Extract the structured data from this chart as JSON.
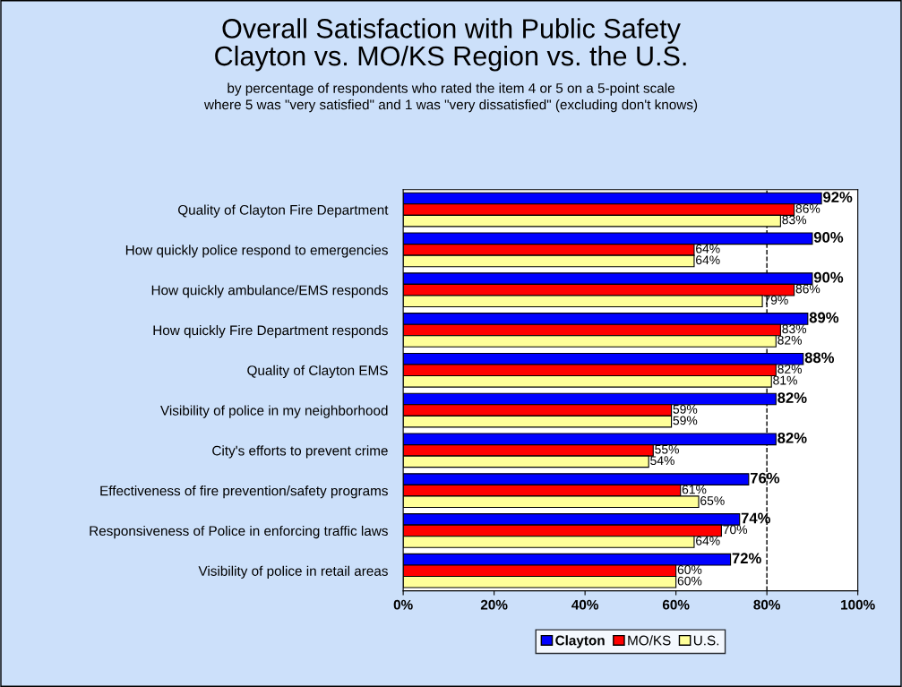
{
  "chart_data": {
    "type": "bar",
    "orientation": "horizontal",
    "title": "Overall Satisfaction with Public Safety",
    "subtitle": "Clayton vs. MO/KS Region vs. the U.S.",
    "annotations": [
      "by percentage of respondents who rated the item 4 or 5 on a 5-point scale",
      "where 5 was \"very satisfied\" and 1 was \"very dissatisfied\" (excluding don't knows)"
    ],
    "categories": [
      "Quality of Clayton Fire Department",
      "How quickly police respond to emergencies",
      "How quickly ambulance/EMS responds",
      "How quickly Fire Department responds",
      "Quality of Clayton EMS",
      "Visibility of police in my neighborhood",
      "City's efforts to prevent crime",
      "Effectiveness of fire prevention/safety programs",
      "Responsiveness of Police in enforcing traffic laws",
      "Visibility of police in retail areas"
    ],
    "series": [
      {
        "name": "Clayton",
        "color": "#0000ff",
        "values": [
          92,
          90,
          90,
          89,
          88,
          82,
          82,
          76,
          74,
          72
        ],
        "value_labels": [
          "92%",
          "90%",
          "90%",
          "89%",
          "88%",
          "82%",
          "82%",
          "76%",
          "74%",
          "72%"
        ]
      },
      {
        "name": "MO/KS",
        "color": "#ff0000",
        "values": [
          86,
          64,
          86,
          83,
          82,
          59,
          55,
          61,
          70,
          60
        ],
        "value_labels": [
          "86%",
          "64%",
          "86%",
          "83%",
          "82%",
          "59%",
          "55%",
          "61%",
          "70%",
          "60%"
        ]
      },
      {
        "name": "U.S.",
        "color": "#ffff99",
        "values": [
          83,
          64,
          79,
          82,
          81,
          59,
          54,
          65,
          64,
          60
        ],
        "value_labels": [
          "83%",
          "64%",
          "79%",
          "82%",
          "81%",
          "59%",
          "54%",
          "65%",
          "64%",
          "60%"
        ]
      }
    ],
    "xlim": [
      0,
      100
    ],
    "xticks": [
      {
        "value": 0,
        "label": "0%"
      },
      {
        "value": 20,
        "label": "20%"
      },
      {
        "value": 40,
        "label": "40%"
      },
      {
        "value": 60,
        "label": "60%"
      },
      {
        "value": 80,
        "label": "80%"
      },
      {
        "value": 100,
        "label": "100%"
      }
    ],
    "ref_lines": [
      {
        "axis": "x",
        "value": 80,
        "label": null,
        "color": "#000000",
        "line_style": "dashed"
      }
    ],
    "grid": false,
    "legend": "bottom"
  }
}
